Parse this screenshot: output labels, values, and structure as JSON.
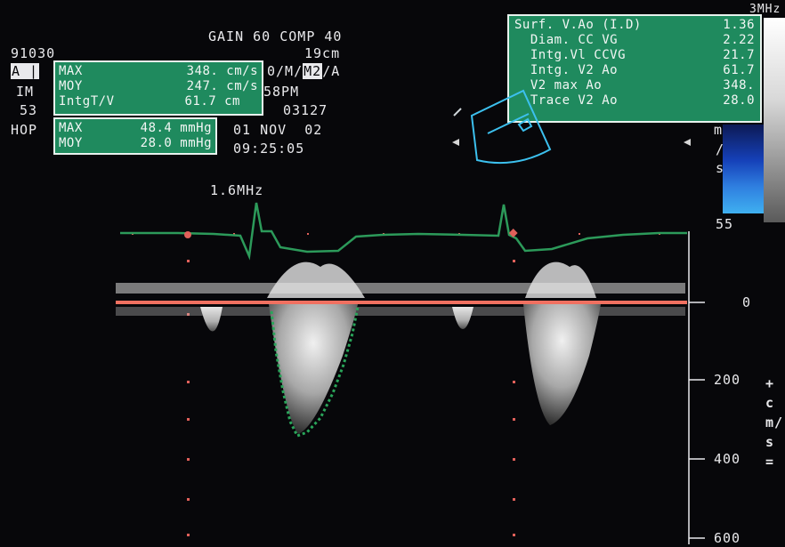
{
  "header": {
    "gain_line": "GAIN 60 COMP 40",
    "id": "91030",
    "depth": "19cm",
    "mode": "0/M/",
    "mode_highlight": "M2",
    "mode_tail": "/A",
    "bpm": "58PM",
    "study_no": "03127",
    "date": "01 NOV  02",
    "time": "09:25:05",
    "probe_freq": "1.6MHz",
    "corner_freq": "3MHz"
  },
  "left_labels": {
    "l1": "IM",
    "l2": "53",
    "l3": "HOP"
  },
  "velocity_box": {
    "rows": [
      {
        "label": "MAX",
        "value": "348. cm/s"
      },
      {
        "label": "MOY",
        "value": "247. cm/s"
      },
      {
        "label": "IntgT/V",
        "value": "61.7 cm"
      }
    ]
  },
  "pressure_box": {
    "rows": [
      {
        "label": "MAX",
        "value": "48.4 mmHg"
      },
      {
        "label": "MOY",
        "value": "28.0 mmHg"
      }
    ]
  },
  "calc_box": {
    "rows": [
      {
        "label": "Surf. V.Ao (I.D)",
        "value": "1.36"
      },
      {
        "label": "  Diam. CC VG",
        "value": "2.22"
      },
      {
        "label": "  Intg.Vl CCVG",
        "value": "21.7"
      },
      {
        "label": "  Intg. V2 Ao",
        "value": "61.7"
      },
      {
        "label": "  V2 max Ao",
        "value": "348."
      },
      {
        "label": "  Trace V2 Ao",
        "value": "28.0"
      }
    ]
  },
  "scale": {
    "side_top": "m",
    "side_mid": "/",
    "side_bot": "s",
    "colorbar_val": "55",
    "ticks": [
      "0",
      "200",
      "400",
      "600"
    ],
    "unit_vertical": "+ cm/s ="
  },
  "colors": {
    "background": "#07070a",
    "overlay_green": "#1f8a5e",
    "ecg": "#2c9a5a",
    "baseline": "#f07060",
    "trace": "#2aa55a",
    "sector": "#3cc0ee"
  }
}
